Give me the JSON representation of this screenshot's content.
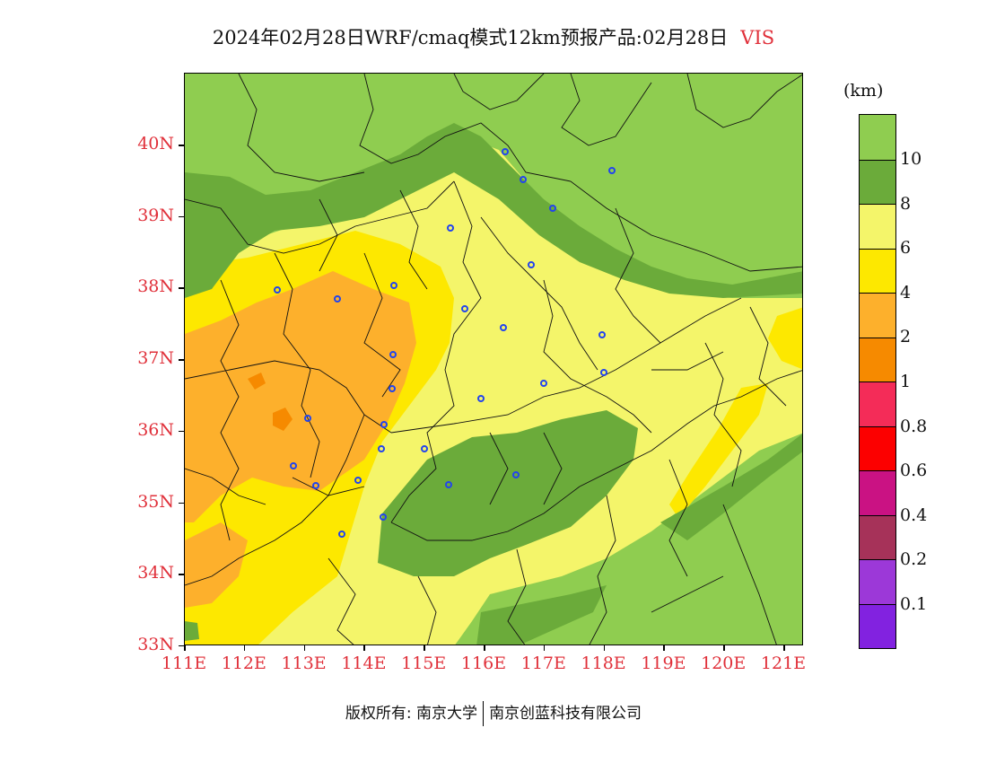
{
  "header": {
    "title": "2024年02月28日WRF/cmaq模式12km预报产品:02月28日",
    "variable": "VIS"
  },
  "map": {
    "lat_labels": [
      "40N",
      "39N",
      "38N",
      "37N",
      "36N",
      "35N",
      "34N",
      "33N"
    ],
    "lon_labels": [
      "111E",
      "112E",
      "113E",
      "114E",
      "115E",
      "116E",
      "117E",
      "118E",
      "119E",
      "120E",
      "121E"
    ],
    "colors": {
      "vis_gt10": "#8fcd50",
      "vis_8_10": "#6bab3a",
      "vis_6_8": "#f4f56a",
      "vis_4_6": "#fde800",
      "vis_2_4": "#fdb02c",
      "vis_1_2": "#f68a00",
      "station": "#2244ee"
    }
  },
  "legend": {
    "unit": "(km)",
    "bins": [
      {
        "color": "#8fcd50"
      },
      {
        "color": "#6bab3a"
      },
      {
        "color": "#f4f56a"
      },
      {
        "color": "#fde800"
      },
      {
        "color": "#fdb02c"
      },
      {
        "color": "#f68a00"
      },
      {
        "color": "#f42c58"
      },
      {
        "color": "#fc0000"
      },
      {
        "color": "#ca1283"
      },
      {
        "color": "#a63259"
      },
      {
        "color": "#9c38d8"
      },
      {
        "color": "#8222e0"
      }
    ],
    "labels": [
      "10",
      "8",
      "6",
      "4",
      "2",
      "1",
      "0.8",
      "0.6",
      "0.4",
      "0.2",
      "0.1"
    ]
  },
  "footer": {
    "copyright": "版权所有: 南京大学",
    "company": "南京创蓝科技有限公司"
  }
}
